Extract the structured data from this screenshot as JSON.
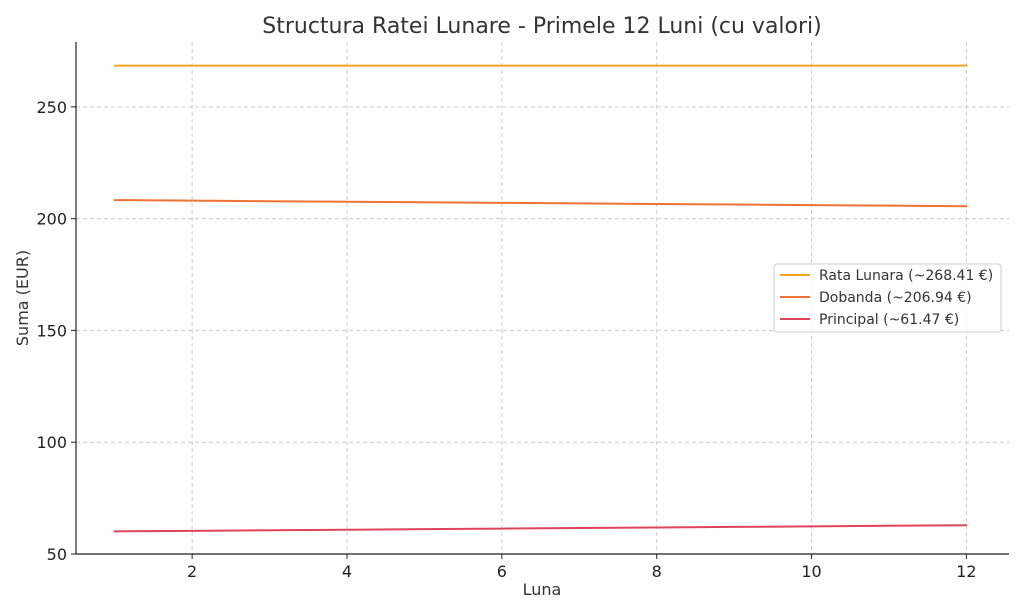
{
  "chart_data": {
    "type": "line",
    "title": "Structura Ratei Lunare - Primele 12 Luni (cu valori)",
    "xlabel": "Luna",
    "ylabel": "Suma (EUR)",
    "xlim": [
      0.5,
      12.55
    ],
    "ylim": [
      50,
      279
    ],
    "xticks": [
      2,
      4,
      6,
      8,
      10,
      12
    ],
    "yticks": [
      50,
      100,
      150,
      200,
      250
    ],
    "grid": true,
    "legend_position": "center-right",
    "x": [
      1,
      2,
      3,
      4,
      5,
      6,
      7,
      8,
      9,
      10,
      11,
      12
    ],
    "series": [
      {
        "name": "Rata Lunara (~268.41 €)",
        "color": "#F5A623",
        "values": [
          268.41,
          268.41,
          268.41,
          268.41,
          268.41,
          268.41,
          268.41,
          268.41,
          268.41,
          268.41,
          268.41,
          268.41
        ]
      },
      {
        "name": "Dobanda (~206.94 €)",
        "color": "#EE7234",
        "values": [
          208.3,
          208.05,
          207.8,
          207.55,
          207.3,
          207.05,
          206.8,
          206.55,
          206.3,
          206.05,
          205.8,
          205.55
        ]
      },
      {
        "name": "Principal (~61.47 €)",
        "color": "#E0445C",
        "values": [
          60.11,
          60.36,
          60.61,
          60.86,
          61.11,
          61.36,
          61.61,
          61.86,
          62.11,
          62.36,
          62.61,
          62.86
        ]
      }
    ]
  }
}
